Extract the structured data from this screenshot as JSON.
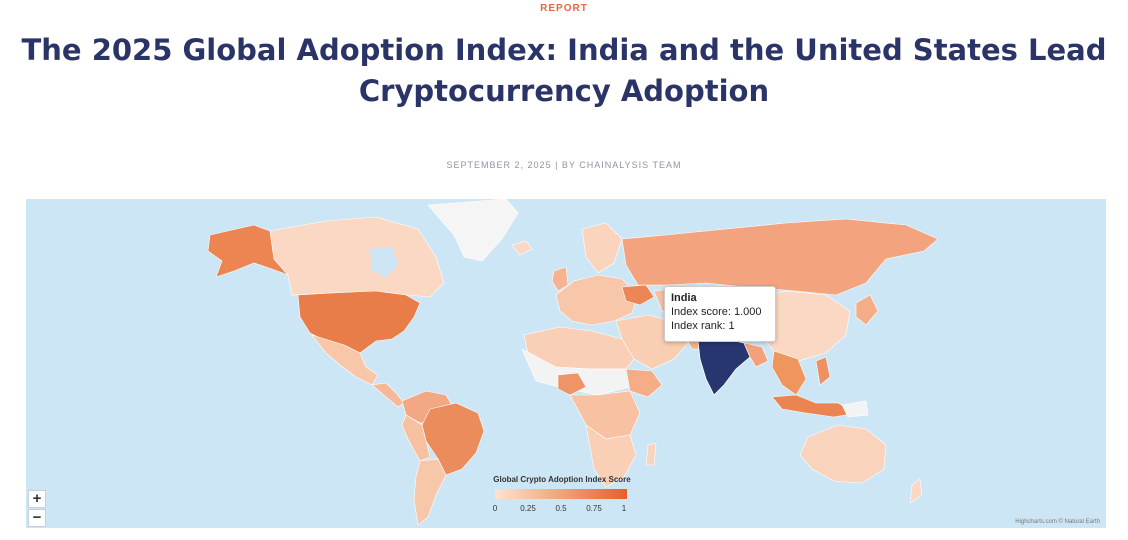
{
  "header": {
    "kicker": "REPORT",
    "title": "The 2025 Global Adoption Index: India and the United States Lead Cryptocurrency Adoption",
    "meta": "SEPTEMBER 2, 2025 | BY CHAINALYSIS TEAM"
  },
  "map": {
    "zoom_in_label": "+",
    "zoom_out_label": "−",
    "ocean_color": "#cde6f5",
    "highlight_color": "#27366f",
    "tooltip": {
      "country": "India",
      "score_line": "Index score: 1.000",
      "rank_line": "Index rank: 1"
    },
    "legend": {
      "title": "Global Crypto Adoption Index Score",
      "ticks": [
        "0",
        "0.25",
        "0.5",
        "0.75",
        "1"
      ],
      "color_low": "#fbe3d5",
      "color_high": "#e6612a"
    },
    "credits": "Highcharts.com © Natural Earth"
  }
}
